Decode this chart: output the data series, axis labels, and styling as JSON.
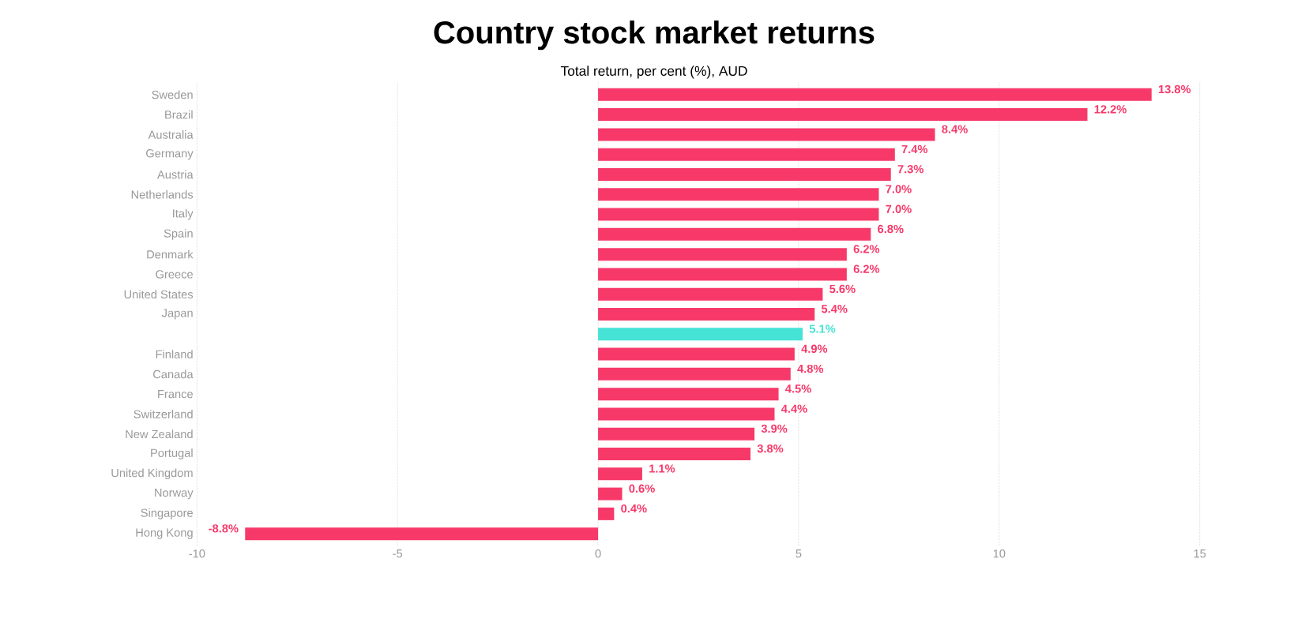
{
  "chart_data": {
    "type": "bar",
    "orientation": "horizontal",
    "title": "Country stock market returns",
    "subtitle": "Total return, per cent (%), AUD",
    "categories": [
      "Sweden",
      "Brazil",
      "Australia",
      "Germany",
      "Austria",
      "Netherlands",
      "Italy",
      "Spain",
      "Denmark",
      "Greece",
      "United States",
      "Japan",
      null,
      "Finland",
      "Canada",
      "France",
      "Switzerland",
      "New Zealand",
      "Portugal",
      "United Kingdom",
      "Norway",
      "Singapore",
      "Hong Kong"
    ],
    "values": [
      13.8,
      12.2,
      8.4,
      7.4,
      7.3,
      7.0,
      7.0,
      6.8,
      6.2,
      6.2,
      5.6,
      5.4,
      5.1,
      4.9,
      4.8,
      4.5,
      4.4,
      3.9,
      3.8,
      1.1,
      0.6,
      0.4,
      -8.8
    ],
    "value_labels": [
      "13.8%",
      "12.2%",
      "8.4%",
      "7.4%",
      "7.3%",
      "7.0%",
      "7.0%",
      "6.8%",
      "6.2%",
      "6.2%",
      "5.6%",
      "5.4%",
      "5.1%",
      "4.9%",
      "4.8%",
      "4.5%",
      "4.4%",
      "3.9%",
      "3.8%",
      "1.1%",
      "0.6%",
      "0.4%",
      "-8.8%"
    ],
    "colors": [
      "#f7396a",
      "#f7396a",
      "#f7396a",
      "#f7396a",
      "#f7396a",
      "#f7396a",
      "#f7396a",
      "#f7396a",
      "#f7396a",
      "#f7396a",
      "#f7396a",
      "#f7396a",
      "#45e3d5",
      "#f7396a",
      "#f7396a",
      "#f7396a",
      "#f7396a",
      "#f7396a",
      "#f7396a",
      "#f7396a",
      "#f7396a",
      "#f7396a",
      "#f7396a"
    ],
    "xlim": [
      -10,
      15
    ],
    "xticks": [
      -10,
      -5,
      0,
      5,
      10,
      15
    ],
    "grid": "x"
  }
}
